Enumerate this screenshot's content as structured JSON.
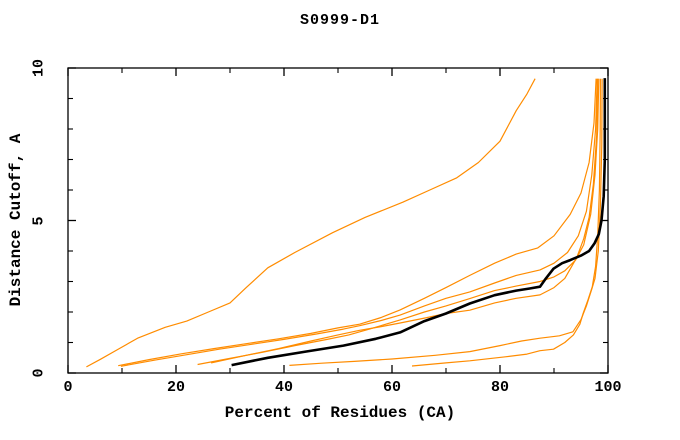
{
  "title": "S0999-D1",
  "chart_data": {
    "type": "line",
    "title": "S0999-D1",
    "xlabel": "Percent of Residues (CA)",
    "ylabel": "Distance Cutoff, A",
    "xlim": [
      0,
      100
    ],
    "ylim": [
      0,
      10
    ],
    "x_major_ticks": [
      0,
      20,
      40,
      60,
      80,
      100
    ],
    "x_minor_ticks": [
      10,
      30,
      50,
      70,
      90
    ],
    "y_major_ticks": [
      0,
      5,
      10
    ],
    "y_minor_ticks": [
      1,
      2,
      3,
      4,
      6,
      7,
      8,
      9
    ],
    "grid": false,
    "legend": "none",
    "frame": "box-with-inward-ticks",
    "colors": {
      "model": "#ff8c00",
      "reference": "#000000",
      "frame": "#000000"
    },
    "series": [
      {
        "name": "model-a",
        "color": "#ff8c00",
        "width": 1.2,
        "points": [
          [
            3.4,
            0.2
          ],
          [
            6,
            0.45
          ],
          [
            9,
            0.75
          ],
          [
            13,
            1.15
          ],
          [
            18,
            1.5
          ],
          [
            22,
            1.7
          ],
          [
            26,
            2.0
          ],
          [
            30,
            2.3
          ],
          [
            33,
            2.8
          ],
          [
            37,
            3.45
          ],
          [
            42,
            3.95
          ],
          [
            49,
            4.6
          ],
          [
            55,
            5.1
          ],
          [
            62,
            5.6
          ],
          [
            67,
            6.0
          ],
          [
            72,
            6.4
          ],
          [
            76,
            6.9
          ],
          [
            80,
            7.6
          ],
          [
            83,
            8.6
          ],
          [
            85,
            9.15
          ],
          [
            86.5,
            9.65
          ]
        ]
      },
      {
        "name": "model-b",
        "color": "#ff8c00",
        "width": 1.2,
        "points": [
          [
            9.3,
            0.24
          ],
          [
            15,
            0.44
          ],
          [
            21,
            0.63
          ],
          [
            27,
            0.8
          ],
          [
            33,
            0.96
          ],
          [
            39,
            1.12
          ],
          [
            45,
            1.3
          ],
          [
            50,
            1.48
          ],
          [
            54,
            1.6
          ],
          [
            58,
            1.82
          ],
          [
            61.5,
            2.07
          ],
          [
            66,
            2.45
          ],
          [
            70,
            2.8
          ],
          [
            74.4,
            3.2
          ],
          [
            79,
            3.6
          ],
          [
            83,
            3.9
          ],
          [
            87,
            4.1
          ],
          [
            90,
            4.5
          ],
          [
            93,
            5.2
          ],
          [
            95,
            5.9
          ],
          [
            96.5,
            6.9
          ],
          [
            97.4,
            8.2
          ],
          [
            97.8,
            9.65
          ]
        ]
      },
      {
        "name": "model-c",
        "color": "#ff8c00",
        "width": 1.2,
        "points": [
          [
            9.8,
            0.22
          ],
          [
            16,
            0.42
          ],
          [
            22,
            0.6
          ],
          [
            28,
            0.78
          ],
          [
            34,
            0.94
          ],
          [
            40,
            1.1
          ],
          [
            46,
            1.28
          ],
          [
            51,
            1.44
          ],
          [
            54,
            1.55
          ],
          [
            58,
            1.72
          ],
          [
            61.5,
            1.9
          ],
          [
            66,
            2.2
          ],
          [
            70,
            2.45
          ],
          [
            74.4,
            2.66
          ],
          [
            79,
            2.95
          ],
          [
            83,
            3.2
          ],
          [
            87.4,
            3.38
          ],
          [
            90,
            3.6
          ],
          [
            92.5,
            3.95
          ],
          [
            94.5,
            4.5
          ],
          [
            96,
            5.3
          ],
          [
            97,
            6.5
          ],
          [
            97.7,
            8.0
          ],
          [
            98,
            9.65
          ]
        ]
      },
      {
        "name": "model-d",
        "color": "#ff8c00",
        "width": 1.2,
        "points": [
          [
            24,
            0.28
          ],
          [
            30,
            0.48
          ],
          [
            36,
            0.68
          ],
          [
            42,
            0.9
          ],
          [
            48,
            1.1
          ],
          [
            52,
            1.25
          ],
          [
            56,
            1.45
          ],
          [
            61.5,
            1.74
          ],
          [
            66,
            2.0
          ],
          [
            70,
            2.2
          ],
          [
            74.4,
            2.44
          ],
          [
            79,
            2.7
          ],
          [
            83,
            2.85
          ],
          [
            87.4,
            3.0
          ],
          [
            90,
            3.15
          ],
          [
            92,
            3.35
          ],
          [
            94,
            3.7
          ],
          [
            95.5,
            4.2
          ],
          [
            96.8,
            5.2
          ],
          [
            97.6,
            6.5
          ],
          [
            98.1,
            8.0
          ],
          [
            98.3,
            9.65
          ]
        ]
      },
      {
        "name": "model-e",
        "color": "#ff8c00",
        "width": 1.2,
        "points": [
          [
            26.5,
            0.33
          ],
          [
            33,
            0.58
          ],
          [
            39,
            0.8
          ],
          [
            45,
            1.05
          ],
          [
            50,
            1.25
          ],
          [
            54,
            1.4
          ],
          [
            58,
            1.52
          ],
          [
            61.5,
            1.64
          ],
          [
            66,
            1.8
          ],
          [
            70,
            1.95
          ],
          [
            74.4,
            2.06
          ],
          [
            79,
            2.3
          ],
          [
            83,
            2.45
          ],
          [
            87.4,
            2.56
          ],
          [
            90,
            2.8
          ],
          [
            92,
            3.1
          ],
          [
            94.2,
            3.78
          ],
          [
            95.5,
            4.4
          ],
          [
            96.5,
            5.1
          ],
          [
            97.3,
            6.2
          ],
          [
            97.9,
            7.8
          ],
          [
            98.1,
            9.65
          ]
        ]
      },
      {
        "name": "model-f",
        "color": "#ff8c00",
        "width": 1.2,
        "points": [
          [
            41,
            0.25
          ],
          [
            47,
            0.32
          ],
          [
            53,
            0.38
          ],
          [
            60,
            0.46
          ],
          [
            68,
            0.58
          ],
          [
            74.4,
            0.7
          ],
          [
            80,
            0.9
          ],
          [
            84,
            1.05
          ],
          [
            87.4,
            1.14
          ],
          [
            91,
            1.22
          ],
          [
            93.5,
            1.35
          ],
          [
            95,
            1.75
          ],
          [
            96,
            2.2
          ],
          [
            97,
            2.75
          ],
          [
            97.6,
            3.1
          ],
          [
            98.2,
            4.0
          ],
          [
            98.6,
            5.5
          ],
          [
            98.85,
            7.5
          ],
          [
            98.9,
            9.65
          ]
        ]
      },
      {
        "name": "model-g",
        "color": "#ff8c00",
        "width": 1.2,
        "points": [
          [
            63.7,
            0.23
          ],
          [
            70,
            0.33
          ],
          [
            74.4,
            0.4
          ],
          [
            81,
            0.53
          ],
          [
            85,
            0.62
          ],
          [
            87.4,
            0.73
          ],
          [
            89.9,
            0.78
          ],
          [
            92,
            1.0
          ],
          [
            93.6,
            1.25
          ],
          [
            94.8,
            1.6
          ],
          [
            95.4,
            1.96
          ],
          [
            96.3,
            2.4
          ],
          [
            97.1,
            2.83
          ],
          [
            97.7,
            3.5
          ],
          [
            98.1,
            4.5
          ],
          [
            98.4,
            6.0
          ],
          [
            98.55,
            8.0
          ],
          [
            98.6,
            9.65
          ]
        ]
      },
      {
        "name": "reference-model",
        "color": "#000000",
        "width": 2.6,
        "points": [
          [
            30.3,
            0.26
          ],
          [
            37,
            0.5
          ],
          [
            44,
            0.7
          ],
          [
            51,
            0.9
          ],
          [
            57,
            1.12
          ],
          [
            61.5,
            1.33
          ],
          [
            66,
            1.7
          ],
          [
            70,
            1.95
          ],
          [
            74.4,
            2.28
          ],
          [
            79,
            2.55
          ],
          [
            83,
            2.7
          ],
          [
            85.5,
            2.77
          ],
          [
            87.4,
            2.83
          ],
          [
            88.5,
            3.1
          ],
          [
            89.9,
            3.42
          ],
          [
            91.5,
            3.6
          ],
          [
            93,
            3.7
          ],
          [
            95,
            3.85
          ],
          [
            96.5,
            4.0
          ],
          [
            97.5,
            4.25
          ],
          [
            98.3,
            4.55
          ],
          [
            98.8,
            5.0
          ],
          [
            99.2,
            5.8
          ],
          [
            99.4,
            7.0
          ],
          [
            99.4,
            9.67
          ]
        ]
      }
    ]
  }
}
